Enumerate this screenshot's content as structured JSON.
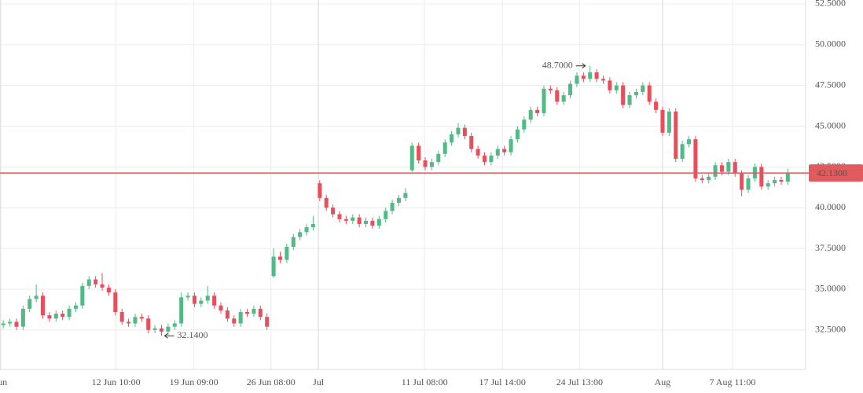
{
  "chart_data": {
    "type": "candlestick",
    "up_color": "#53b987",
    "down_color": "#eb4d5c",
    "grid": true,
    "xlim": [
      -0.5,
      121.7
    ],
    "ylim": [
      30.08,
      52.74
    ],
    "yticks": [
      {
        "value": 32.5,
        "label": "32.5000"
      },
      {
        "value": 35,
        "label": "35.0000"
      },
      {
        "value": 37.5,
        "label": "37.5000"
      },
      {
        "value": 40,
        "label": "40.0000"
      },
      {
        "value": 42.5,
        "label": "42.5000"
      },
      {
        "value": 45,
        "label": "45.0000"
      },
      {
        "value": 47.5,
        "label": "47.5000"
      },
      {
        "value": 50,
        "label": "50.0000"
      },
      {
        "value": 52.5,
        "label": "52.5000"
      }
    ],
    "xticks": [
      {
        "value": -0.4,
        "label": "Jun"
      },
      {
        "value": 17.1,
        "label": "12 Jun 10:00"
      },
      {
        "value": 28.9,
        "label": "19 Jun 09:00"
      },
      {
        "value": 40.6,
        "label": "26 Jun 08:00"
      },
      {
        "value": 47.8,
        "label": "Jul"
      },
      {
        "value": 63.9,
        "label": "11 Jul 08:00"
      },
      {
        "value": 75.7,
        "label": "17 Jul 14:00"
      },
      {
        "value": 87.4,
        "label": "24 Jul 13:00"
      },
      {
        "value": 100,
        "label": "Aug"
      },
      {
        "value": 110.6,
        "label": "7 Aug 11:00"
      }
    ],
    "price_line": {
      "value": 42.13,
      "label": "42.1300",
      "color": "#e05a5e"
    },
    "annotations": [
      {
        "x": 89,
        "value": 48.7,
        "label": "48.7000",
        "side": "left"
      },
      {
        "x": 24,
        "value": 32.14,
        "label": "32.1400",
        "side": "right"
      }
    ],
    "open": [
      32.8,
      32.9,
      33.0,
      32.7,
      33.8,
      34.4,
      34.6,
      33.4,
      33.2,
      33.5,
      33.3,
      33.8,
      34.0,
      35.2,
      35.6,
      35.3,
      35.1,
      34.8,
      33.6,
      33.0,
      32.9,
      33.3,
      33.2,
      32.5,
      32.6,
      32.4,
      32.7,
      32.9,
      34.5,
      34.6,
      34.1,
      34.3,
      34.6,
      34.0,
      33.7,
      33.2,
      32.9,
      33.6,
      33.5,
      33.8,
      33.3,
      35.8,
      37.0,
      36.8,
      37.6,
      38.2,
      38.5,
      38.8,
      41.5,
      40.6,
      40.0,
      39.6,
      39.3,
      39.2,
      39.4,
      39.0,
      39.2,
      38.9,
      39.3,
      39.8,
      40.3,
      40.6,
      42.3,
      43.8,
      42.9,
      42.5,
      42.8,
      43.3,
      44.0,
      44.5,
      44.9,
      44.4,
      43.6,
      43.2,
      42.8,
      43.2,
      43.6,
      43.4,
      44.2,
      44.8,
      45.4,
      46.0,
      45.8,
      47.3,
      47.2,
      46.5,
      46.9,
      47.6,
      48.1,
      47.9,
      48.3,
      47.9,
      47.8,
      47.2,
      47.5,
      46.3,
      46.9,
      47.1,
      47.5,
      46.5,
      46.0,
      44.6,
      45.9,
      43.0,
      43.9,
      44.2,
      41.8,
      41.7,
      41.9,
      42.6,
      42.2,
      42.8,
      42.1,
      41.1,
      41.8,
      42.5,
      41.3,
      41.5,
      41.7,
      41.6
    ],
    "high": [
      33.1,
      33.2,
      33.2,
      34.0,
      34.6,
      35.3,
      34.8,
      33.6,
      33.7,
      33.7,
      34.0,
      34.2,
      35.4,
      35.8,
      35.8,
      36.0,
      35.3,
      35.0,
      33.8,
      33.2,
      33.5,
      33.5,
      33.4,
      32.8,
      32.8,
      32.9,
      33.1,
      34.8,
      34.8,
      34.8,
      34.5,
      35.2,
      34.8,
      34.2,
      33.9,
      33.4,
      33.8,
      33.8,
      34.0,
      34.0,
      33.5,
      37.5,
      37.3,
      37.8,
      38.4,
      38.7,
      39.0,
      39.5,
      41.7,
      40.8,
      40.2,
      39.8,
      39.5,
      39.6,
      39.6,
      39.4,
      39.4,
      39.5,
      40.0,
      40.5,
      40.8,
      41.2,
      44.0,
      44.0,
      43.1,
      43.0,
      43.5,
      44.2,
      44.7,
      45.2,
      45.1,
      44.6,
      43.8,
      43.4,
      43.4,
      43.8,
      43.8,
      44.4,
      45.0,
      45.6,
      46.2,
      46.2,
      47.5,
      47.5,
      47.4,
      47.1,
      47.8,
      48.3,
      48.3,
      48.7,
      48.5,
      48.1,
      48.0,
      47.7,
      47.7,
      47.1,
      47.3,
      47.7,
      47.7,
      46.7,
      46.2,
      46.1,
      46.1,
      44.1,
      44.4,
      44.4,
      42.0,
      42.1,
      42.8,
      42.8,
      43.0,
      43.0,
      42.3,
      42.0,
      42.7,
      42.7,
      41.7,
      41.9,
      41.9,
      42.4
    ],
    "low": [
      32.6,
      32.7,
      32.5,
      32.5,
      33.6,
      34.2,
      33.2,
      33.0,
      33.0,
      33.1,
      33.1,
      33.6,
      33.8,
      35.0,
      35.1,
      34.9,
      34.6,
      33.4,
      32.8,
      32.7,
      32.7,
      33.0,
      32.3,
      32.3,
      32.14,
      32.2,
      32.5,
      32.7,
      34.3,
      33.9,
      33.9,
      34.1,
      33.8,
      33.5,
      33.0,
      32.7,
      32.7,
      33.3,
      33.3,
      33.1,
      32.5,
      35.7,
      36.6,
      36.6,
      37.4,
      38.0,
      38.3,
      38.6,
      40.4,
      39.8,
      39.4,
      39.1,
      39.0,
      39.0,
      38.8,
      38.8,
      38.7,
      38.7,
      39.1,
      39.6,
      40.1,
      40.4,
      42.2,
      42.7,
      42.3,
      42.3,
      42.6,
      43.1,
      43.8,
      44.3,
      44.2,
      43.4,
      43.0,
      42.6,
      42.6,
      43.0,
      43.2,
      43.2,
      44.0,
      44.6,
      45.2,
      45.6,
      45.6,
      47.0,
      46.3,
      46.3,
      46.7,
      47.4,
      47.7,
      47.7,
      47.7,
      47.6,
      47.0,
      47.0,
      46.1,
      46.1,
      46.7,
      46.9,
      46.3,
      45.8,
      44.4,
      44.4,
      42.8,
      42.8,
      43.7,
      41.6,
      41.5,
      41.5,
      41.7,
      42.0,
      42.0,
      41.9,
      40.7,
      40.9,
      41.6,
      41.1,
      41.1,
      41.3,
      41.4,
      41.4
    ],
    "close": [
      32.9,
      33.0,
      32.7,
      33.8,
      34.4,
      34.6,
      33.4,
      33.2,
      33.5,
      33.3,
      33.8,
      34.0,
      35.2,
      35.6,
      35.3,
      35.1,
      34.8,
      33.6,
      33.0,
      32.9,
      33.3,
      33.2,
      32.5,
      32.6,
      32.4,
      32.7,
      32.9,
      34.5,
      34.6,
      34.1,
      34.3,
      34.6,
      34.0,
      33.7,
      33.2,
      32.9,
      33.6,
      33.5,
      33.8,
      33.3,
      32.7,
      37.0,
      36.8,
      37.6,
      38.2,
      38.5,
      38.8,
      39.0,
      40.6,
      40.0,
      39.6,
      39.3,
      39.2,
      39.4,
      39.0,
      39.2,
      38.9,
      39.3,
      39.8,
      40.3,
      40.6,
      40.9,
      43.8,
      42.9,
      42.5,
      42.8,
      43.3,
      44.0,
      44.5,
      44.9,
      44.4,
      43.6,
      43.2,
      42.8,
      43.2,
      43.6,
      43.4,
      44.2,
      44.8,
      45.4,
      46.0,
      45.8,
      47.3,
      47.2,
      46.5,
      46.9,
      47.6,
      48.1,
      47.9,
      48.3,
      47.9,
      47.8,
      47.2,
      47.5,
      46.3,
      46.9,
      47.1,
      47.5,
      46.5,
      46.0,
      44.6,
      45.9,
      43.0,
      43.9,
      44.2,
      41.8,
      41.7,
      41.9,
      42.6,
      42.2,
      42.8,
      42.1,
      41.1,
      41.8,
      42.5,
      41.3,
      41.5,
      41.7,
      41.6,
      42.13
    ]
  }
}
